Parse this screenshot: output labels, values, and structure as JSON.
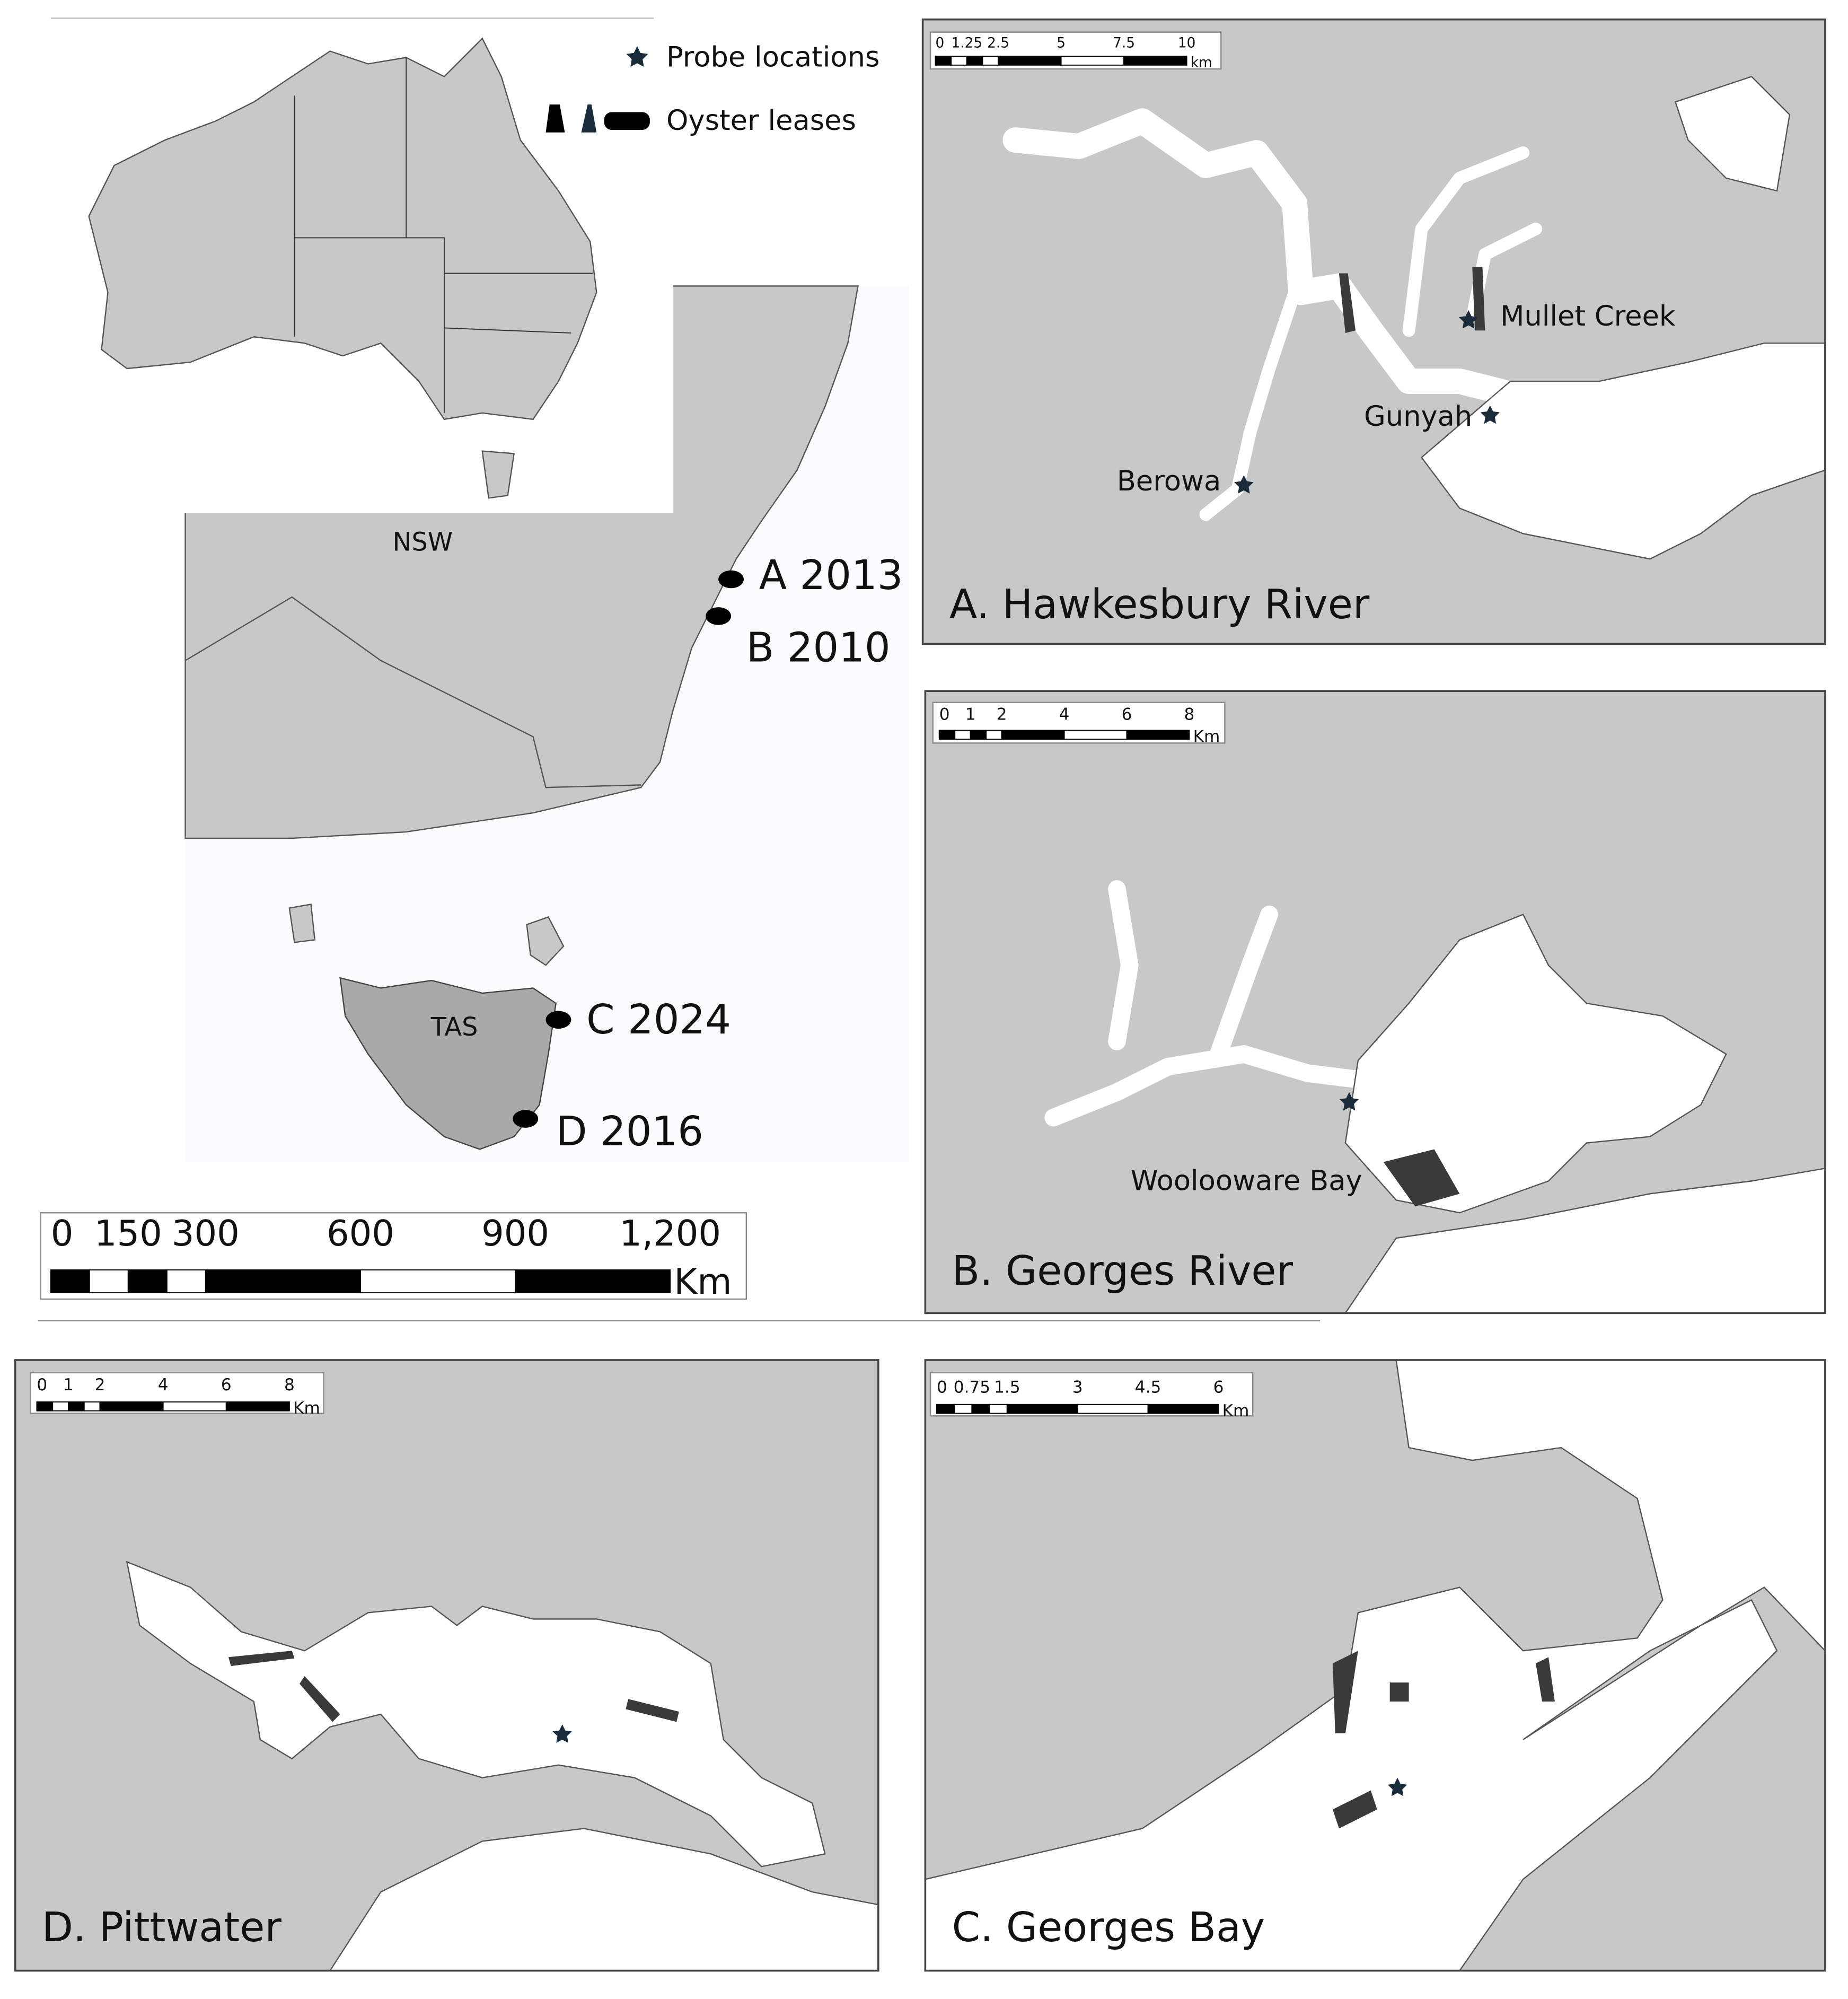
{
  "legend": {
    "items": [
      {
        "label": "Probe locations"
      },
      {
        "label": "Oyster leases"
      }
    ]
  },
  "overview": {
    "regions": [
      "NSW",
      "TAS"
    ],
    "sites": [
      "A 2013",
      "B 2010",
      "C 2024",
      "D 2016"
    ],
    "scale_bar": {
      "ticks": [
        "0",
        "150",
        "300",
        "600",
        "900",
        "1,200"
      ],
      "unit": "Km"
    }
  },
  "panels": [
    {
      "title": "A. Hawkesbury River",
      "scale_bar": {
        "ticks": [
          "0",
          "1.25",
          "2.5",
          "5",
          "7.5",
          "10"
        ],
        "unit": "km"
      },
      "places": [
        "Mullet Creek",
        "Gunyah",
        "Berowa"
      ]
    },
    {
      "title": "B. Georges River",
      "scale_bar": {
        "ticks": [
          "0",
          "1",
          "2",
          "4",
          "6",
          "8"
        ],
        "unit": "Km"
      },
      "places": [
        "Woolooware Bay"
      ]
    },
    {
      "title": "D. Pittwater",
      "scale_bar": {
        "ticks": [
          "0",
          "1",
          "2",
          "4",
          "6",
          "8"
        ],
        "unit": "Km"
      },
      "places": []
    },
    {
      "title": "C. Georges Bay",
      "scale_bar": {
        "ticks": [
          "0",
          "0.75",
          "1.5",
          "3",
          "4.5",
          "6"
        ],
        "unit": "Km"
      },
      "places": []
    }
  ]
}
